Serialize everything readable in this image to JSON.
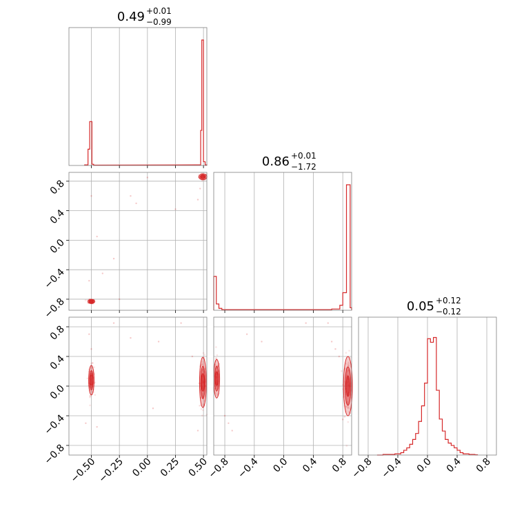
{
  "chart_data": [
    {
      "type": "histogram",
      "panel": "marginal-1",
      "title": {
        "value": "0.49",
        "plus": "+0.01",
        "minus": "−0.99"
      },
      "xlim": [
        -0.7,
        0.53
      ],
      "xticks": [
        -0.5,
        -0.25,
        0.0,
        0.25,
        0.5
      ],
      "xticklabels": [
        "−0.50",
        "−0.25",
        "0.00",
        "0.25",
        "0.50"
      ],
      "color": "#d62728",
      "bins": [
        {
          "x0": -0.56,
          "x1": -0.53,
          "h": 0.005
        },
        {
          "x0": -0.53,
          "x1": -0.515,
          "h": 0.13
        },
        {
          "x0": -0.515,
          "x1": -0.495,
          "h": 0.35
        },
        {
          "x0": -0.495,
          "x1": -0.48,
          "h": 0.01
        },
        {
          "x0": -0.48,
          "x1": -0.44,
          "h": 0.003
        },
        {
          "x0": 0.44,
          "x1": 0.475,
          "h": 0.005
        },
        {
          "x0": 0.475,
          "x1": 0.485,
          "h": 0.28
        },
        {
          "x0": 0.485,
          "x1": 0.5,
          "h": 1.0
        },
        {
          "x0": 0.5,
          "x1": 0.515,
          "h": 0.03
        },
        {
          "x0": 0.515,
          "x1": 0.53,
          "h": 0.005
        }
      ]
    },
    {
      "type": "histogram",
      "panel": "marginal-2",
      "title": {
        "value": "0.86",
        "plus": "+0.01",
        "minus": "−1.72"
      },
      "xlim": [
        -0.95,
        0.92
      ],
      "xticks": [
        -0.8,
        -0.4,
        0.0,
        0.4,
        0.8
      ],
      "xticklabels": [
        "−0.8",
        "−0.4",
        "0.0",
        "0.4",
        "0.8"
      ],
      "color": "#d62728",
      "bins": [
        {
          "x0": -0.95,
          "x1": -0.915,
          "h": 0.27
        },
        {
          "x0": -0.915,
          "x1": -0.88,
          "h": 0.05
        },
        {
          "x0": -0.88,
          "x1": -0.84,
          "h": 0.015
        },
        {
          "x0": -0.84,
          "x1": 0.65,
          "h": 0.005
        },
        {
          "x0": 0.65,
          "x1": 0.76,
          "h": 0.01
        },
        {
          "x0": 0.76,
          "x1": 0.8,
          "h": 0.04
        },
        {
          "x0": 0.8,
          "x1": 0.85,
          "h": 0.14
        },
        {
          "x0": 0.85,
          "x1": 0.9,
          "h": 1.0
        },
        {
          "x0": 0.9,
          "x1": 0.92,
          "h": 0.02
        }
      ]
    },
    {
      "type": "histogram",
      "panel": "marginal-3",
      "title": {
        "value": "0.05",
        "plus": "+0.12",
        "minus": "−0.12"
      },
      "xlim": [
        -0.93,
        0.93
      ],
      "xticks": [
        -0.8,
        -0.4,
        0.0,
        0.4,
        0.8
      ],
      "xticklabels": [
        "−0.8",
        "−0.4",
        "0.0",
        "0.4",
        "0.8"
      ],
      "color": "#d62728",
      "steps": [
        [
          -0.68,
          0.0
        ],
        [
          -0.6,
          0.005
        ],
        [
          -0.52,
          0.005
        ],
        [
          -0.44,
          0.01
        ],
        [
          -0.36,
          0.02
        ],
        [
          -0.32,
          0.04
        ],
        [
          -0.28,
          0.06
        ],
        [
          -0.24,
          0.09
        ],
        [
          -0.2,
          0.13
        ],
        [
          -0.16,
          0.18
        ],
        [
          -0.12,
          0.28
        ],
        [
          -0.08,
          0.41
        ],
        [
          -0.04,
          0.6
        ],
        [
          0.0,
          0.97
        ],
        [
          0.04,
          0.94
        ],
        [
          0.08,
          0.98
        ],
        [
          0.12,
          0.54
        ],
        [
          0.16,
          0.3
        ],
        [
          0.2,
          0.2
        ],
        [
          0.24,
          0.13
        ],
        [
          0.28,
          0.1
        ],
        [
          0.32,
          0.08
        ],
        [
          0.36,
          0.06
        ],
        [
          0.4,
          0.04
        ],
        [
          0.44,
          0.02
        ],
        [
          0.48,
          0.01
        ],
        [
          0.56,
          0.005
        ],
        [
          0.64,
          0.002
        ],
        [
          0.68,
          0.0
        ]
      ]
    },
    {
      "type": "scatter",
      "panel": "joint-2-vs-1",
      "xlim": [
        -0.7,
        0.53
      ],
      "ylim": [
        -0.95,
        0.92
      ],
      "yticks": [
        -0.8,
        -0.4,
        0.0,
        0.4,
        0.8
      ],
      "yticklabels": [
        "−0.8",
        "−0.4",
        "0.0",
        "0.4",
        "0.8"
      ],
      "color": "#d62728",
      "clusters": [
        {
          "x": 0.495,
          "y": 0.86,
          "sx": 0.018,
          "sy": 0.02
        },
        {
          "x": -0.5,
          "y": -0.83,
          "sx": 0.015,
          "sy": 0.015
        }
      ],
      "outliers": [
        [
          -0.5,
          0.6
        ],
        [
          -0.45,
          0.05
        ],
        [
          -0.3,
          -0.25
        ],
        [
          -0.25,
          -0.8
        ],
        [
          -0.15,
          0.6
        ],
        [
          -0.1,
          0.5
        ],
        [
          0.25,
          0.42
        ],
        [
          0.45,
          0.55
        ],
        [
          0.47,
          0.7
        ],
        [
          -0.52,
          -0.55
        ],
        [
          -0.4,
          -0.45
        ],
        [
          0.0,
          0.85
        ]
      ]
    },
    {
      "type": "scatter",
      "panel": "joint-3-vs-1",
      "xlim": [
        -0.7,
        0.53
      ],
      "ylim": [
        -0.93,
        0.93
      ],
      "yticks": [
        -0.8,
        -0.4,
        0.0,
        0.4,
        0.8
      ],
      "yticklabels": [
        "−0.8",
        "−0.4",
        "0.0",
        "0.4",
        "0.8"
      ],
      "color": "#d62728",
      "clusters": [
        {
          "x": -0.5,
          "y": 0.08,
          "sx": 0.012,
          "sy": 0.1
        },
        {
          "x": 0.495,
          "y": 0.05,
          "sx": 0.015,
          "sy": 0.17
        }
      ],
      "outliers": [
        [
          -0.55,
          -0.5
        ],
        [
          -0.45,
          -0.55
        ],
        [
          -0.3,
          0.85
        ],
        [
          -0.15,
          0.65
        ],
        [
          0.1,
          0.6
        ],
        [
          0.3,
          0.85
        ],
        [
          0.4,
          0.4
        ],
        [
          -0.5,
          0.5
        ],
        [
          0.45,
          -0.6
        ],
        [
          -0.52,
          0.7
        ],
        [
          0.05,
          -0.3
        ]
      ]
    },
    {
      "type": "scatter",
      "panel": "joint-3-vs-2",
      "xlim": [
        -0.95,
        0.92
      ],
      "ylim": [
        -0.93,
        0.93
      ],
      "color": "#d62728",
      "clusters": [
        {
          "x": -0.91,
          "y": 0.1,
          "sx": 0.02,
          "sy": 0.13
        },
        {
          "x": 0.87,
          "y": 0.0,
          "sx": 0.03,
          "sy": 0.2
        }
      ],
      "outliers": [
        [
          -0.8,
          -0.4
        ],
        [
          -0.7,
          -0.6
        ],
        [
          -0.75,
          -0.5
        ],
        [
          0.65,
          0.6
        ],
        [
          0.7,
          0.5
        ],
        [
          0.75,
          0.4
        ],
        [
          0.8,
          -0.45
        ],
        [
          0.6,
          0.85
        ],
        [
          -0.5,
          0.7
        ],
        [
          0.3,
          0.85
        ],
        [
          -0.3,
          0.6
        ]
      ]
    }
  ]
}
